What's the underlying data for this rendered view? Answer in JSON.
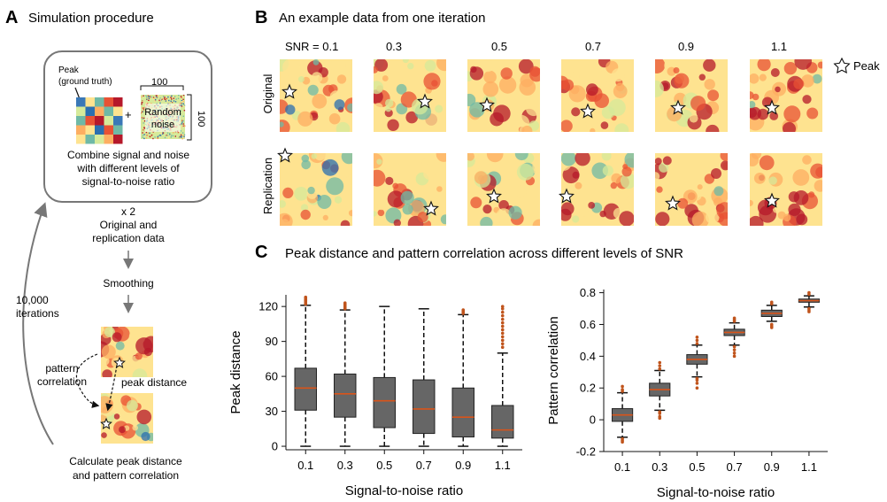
{
  "panelA": {
    "letter": "A",
    "title": "Simulation procedure",
    "peak_label_1": "Peak",
    "peak_label_2": "(ground truth)",
    "dim_top": "100",
    "dim_right": "100",
    "plus": "+",
    "noise_label_1": "Random",
    "noise_label_2": "noise",
    "combine_1": "Combine signal and noise",
    "combine_2": "with different levels of",
    "combine_3": "signal-to-noise ratio",
    "times_two": "x 2",
    "orig_repl_1": "Original and",
    "orig_repl_2": "replication data",
    "smoothing": "Smoothing",
    "iterations_1": "10,000",
    "iterations_2": "iterations",
    "pattern_corr_1": "pattern",
    "pattern_corr_2": "correlation",
    "peak_distance": "peak distance",
    "calc_1": "Calculate peak distance",
    "calc_2": "and pattern correlation"
  },
  "panelB": {
    "letter": "B",
    "title": "An example data from one iteration",
    "snr_labels": [
      "SNR = 0.1",
      "0.3",
      "0.5",
      "0.7",
      "0.9",
      "1.1"
    ],
    "row_labels": [
      "Original",
      "Replication"
    ],
    "legend_label": "Peak",
    "colors": [
      "#2b6fb0",
      "#6fb9a6",
      "#d6ea9a",
      "#fee390",
      "#fdae61",
      "#e85234",
      "#b5182a"
    ]
  },
  "panelC": {
    "letter": "C",
    "title": "Peak distance and pattern correlation across different levels of SNR"
  },
  "chart_data": [
    {
      "type": "box",
      "ylabel": "Peak distance",
      "xlabel": "Signal-to-noise ratio",
      "categories": [
        "0.1",
        "0.3",
        "0.5",
        "0.7",
        "0.9",
        "1.1"
      ],
      "yticks": [
        0,
        30,
        60,
        90,
        120
      ],
      "ylim": [
        -3,
        130
      ],
      "box_fill": "#666666",
      "median_color": "#d9541a",
      "outlier_color": "#c0541c",
      "boxes": [
        {
          "q1": 31,
          "median": 50,
          "q3": 67,
          "whisker_low": 0,
          "whisker_high": 121,
          "outliers": [
            122,
            123,
            124,
            125,
            126,
            127,
            128
          ]
        },
        {
          "q1": 25,
          "median": 45,
          "q3": 62,
          "whisker_low": 0,
          "whisker_high": 117,
          "outliers": [
            118,
            119,
            120,
            121,
            122,
            123
          ]
        },
        {
          "q1": 16,
          "median": 39,
          "q3": 59,
          "whisker_low": 0,
          "whisker_high": 120,
          "outliers": []
        },
        {
          "q1": 11,
          "median": 32,
          "q3": 57,
          "whisker_low": 0,
          "whisker_high": 118,
          "outliers": []
        },
        {
          "q1": 8,
          "median": 25,
          "q3": 50,
          "whisker_low": 0,
          "whisker_high": 113,
          "outliers": [
            114,
            115,
            116,
            117
          ]
        },
        {
          "q1": 7,
          "median": 14,
          "q3": 35,
          "whisker_low": 0,
          "whisker_high": 80,
          "outliers": [
            85,
            88,
            91,
            94,
            97,
            100,
            103,
            106,
            109,
            112,
            115,
            118,
            120
          ]
        }
      ]
    },
    {
      "type": "box",
      "ylabel": "Pattern correlation",
      "xlabel": "Signal-to-noise ratio",
      "categories": [
        "0.1",
        "0.3",
        "0.5",
        "0.7",
        "0.9",
        "1.1"
      ],
      "yticks": [
        -0.2,
        0,
        0.2,
        0.4,
        0.6,
        0.8
      ],
      "ylim": [
        -0.2,
        0.82
      ],
      "box_fill": "#666666",
      "median_color": "#d9541a",
      "outlier_color": "#c0541c",
      "boxes": [
        {
          "q1": -0.01,
          "median": 0.03,
          "q3": 0.07,
          "whisker_low": -0.11,
          "whisker_high": 0.17,
          "outliers": [
            -0.14,
            -0.13,
            -0.12,
            0.18,
            0.19,
            0.21
          ]
        },
        {
          "q1": 0.15,
          "median": 0.19,
          "q3": 0.23,
          "whisker_low": 0.06,
          "whisker_high": 0.31,
          "outliers": [
            0.01,
            0.02,
            0.04,
            0.05,
            0.32,
            0.34,
            0.36
          ]
        },
        {
          "q1": 0.35,
          "median": 0.38,
          "q3": 0.41,
          "whisker_low": 0.27,
          "whisker_high": 0.47,
          "outliers": [
            0.2,
            0.23,
            0.25,
            0.26,
            0.48,
            0.5,
            0.52
          ]
        },
        {
          "q1": 0.53,
          "median": 0.55,
          "q3": 0.57,
          "whisker_low": 0.47,
          "whisker_high": 0.61,
          "outliers": [
            0.4,
            0.42,
            0.44,
            0.46,
            0.62,
            0.63,
            0.64
          ]
        },
        {
          "q1": 0.65,
          "median": 0.67,
          "q3": 0.69,
          "whisker_low": 0.62,
          "whisker_high": 0.72,
          "outliers": [
            0.58,
            0.59,
            0.6,
            0.73,
            0.74
          ]
        },
        {
          "q1": 0.74,
          "median": 0.75,
          "q3": 0.76,
          "whisker_low": 0.71,
          "whisker_high": 0.78,
          "outliers": [
            0.68,
            0.69,
            0.7,
            0.79,
            0.8
          ]
        }
      ]
    }
  ]
}
